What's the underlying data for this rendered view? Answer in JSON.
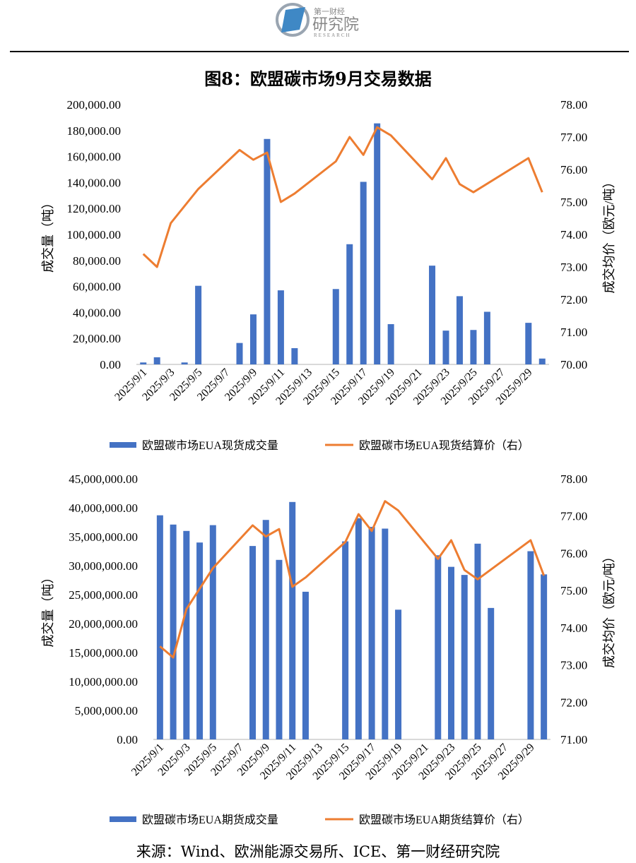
{
  "logo": {
    "line1": "第一财经",
    "line2": "研究院",
    "line3": "RESEARCH"
  },
  "title": "图8：欧盟碳市场9月交易数据",
  "source": "来源：Wind、欧洲能源交易所、ICE、第一财经研究院",
  "colors": {
    "bar": "#4472C4",
    "line": "#ED7D31"
  },
  "chart_data": [
    {
      "type": "bar+line",
      "categories": [
        "2025/9/1",
        "2025/9/2",
        "2025/9/3",
        "2025/9/4",
        "2025/9/5",
        "2025/9/6",
        "2025/9/7",
        "2025/9/8",
        "2025/9/9",
        "2025/9/10",
        "2025/9/11",
        "2025/9/12",
        "2025/9/13",
        "2025/9/14",
        "2025/9/15",
        "2025/9/16",
        "2025/9/17",
        "2025/9/18",
        "2025/9/19",
        "2025/9/20",
        "2025/9/21",
        "2025/9/22",
        "2025/9/23",
        "2025/9/24",
        "2025/9/25",
        "2025/9/26",
        "2025/9/27",
        "2025/9/28",
        "2025/9/29",
        "2025/9/30"
      ],
      "ylabel": "成交量（吨）",
      "y2label": "成交均价（欧元/吨）",
      "ylim": [
        0,
        200000
      ],
      "yticks": [
        "0.00",
        "20,000.00",
        "40,000.00",
        "60,000.00",
        "80,000.00",
        "100,000.00",
        "120,000.00",
        "140,000.00",
        "160,000.00",
        "180,000.00",
        "200,000.00"
      ],
      "y2lim": [
        70,
        78
      ],
      "y2ticks": [
        "70.00",
        "71.00",
        "72.00",
        "73.00",
        "74.00",
        "75.00",
        "76.00",
        "77.00",
        "78.00"
      ],
      "legend_position": "bottom",
      "series": [
        {
          "name": "欧盟碳市场EUA现货成交量",
          "kind": "bar",
          "axis": "left",
          "values": [
            1500,
            5500,
            null,
            1500,
            60500,
            null,
            null,
            16500,
            38500,
            173500,
            57000,
            12500,
            null,
            null,
            58000,
            92500,
            140500,
            185500,
            31000,
            null,
            null,
            76000,
            26000,
            52500,
            26500,
            40500,
            null,
            null,
            32000,
            4500
          ]
        },
        {
          "name": "欧盟碳市场EUA现货结算价（右）",
          "kind": "line",
          "axis": "right",
          "values": [
            73.4,
            73.0,
            74.35,
            null,
            75.4,
            null,
            null,
            76.6,
            76.3,
            76.52,
            75.0,
            75.26,
            null,
            null,
            76.25,
            77.0,
            76.45,
            77.3,
            77.05,
            null,
            null,
            75.7,
            76.35,
            75.55,
            75.3,
            null,
            null,
            null,
            76.35,
            75.3
          ]
        }
      ]
    },
    {
      "type": "bar+line",
      "categories": [
        "2025/9/1",
        "2025/9/2",
        "2025/9/3",
        "2025/9/4",
        "2025/9/5",
        "2025/9/6",
        "2025/9/7",
        "2025/9/8",
        "2025/9/9",
        "2025/9/10",
        "2025/9/11",
        "2025/9/12",
        "2025/9/13",
        "2025/9/14",
        "2025/9/15",
        "2025/9/16",
        "2025/9/17",
        "2025/9/18",
        "2025/9/19",
        "2025/9/20",
        "2025/9/21",
        "2025/9/22",
        "2025/9/23",
        "2025/9/24",
        "2025/9/25",
        "2025/9/26",
        "2025/9/27",
        "2025/9/28",
        "2025/9/29",
        "2025/9/30"
      ],
      "ylabel": "成交量（吨）",
      "y2label": "成交均价（欧元/吨）",
      "ylim": [
        0,
        45000000
      ],
      "yticks": [
        "0.00",
        "5,000,000.00",
        "10,000,000.00",
        "15,000,000.00",
        "20,000,000.00",
        "25,000,000.00",
        "30,000,000.00",
        "35,000,000.00",
        "40,000,000.00",
        "45,000,000.00"
      ],
      "y2lim": [
        71,
        78
      ],
      "y2ticks": [
        "71.00",
        "72.00",
        "73.00",
        "74.00",
        "75.00",
        "76.00",
        "77.00",
        "78.00"
      ],
      "legend_position": "bottom",
      "series": [
        {
          "name": "欧盟碳市场EUA期货成交量",
          "kind": "bar",
          "axis": "left",
          "values": [
            38700000,
            37100000,
            36000000,
            34000000,
            37000000,
            null,
            null,
            33400000,
            37900000,
            31000000,
            41000000,
            25500000,
            null,
            null,
            34200000,
            38200000,
            36700000,
            36400000,
            22400000,
            null,
            null,
            31800000,
            29800000,
            28400000,
            33800000,
            22700000,
            null,
            null,
            32500000,
            28500000
          ]
        },
        {
          "name": "欧盟碳市场EUA期货结算价（右）",
          "kind": "line",
          "axis": "right",
          "values": [
            73.5,
            73.2,
            74.5,
            null,
            75.6,
            null,
            null,
            76.75,
            76.45,
            76.65,
            75.1,
            75.35,
            null,
            null,
            76.3,
            77.05,
            76.6,
            77.4,
            77.15,
            null,
            null,
            75.85,
            76.35,
            75.55,
            75.3,
            null,
            null,
            null,
            76.35,
            75.4
          ]
        }
      ]
    }
  ]
}
